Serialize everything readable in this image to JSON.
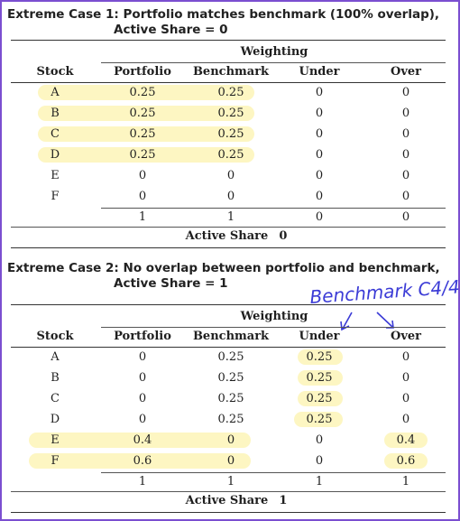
{
  "case1": {
    "title_line1": "Extreme Case 1: Portfolio matches benchmark (100% overlap),",
    "title_line2": "Active Share = 0",
    "weighting_label": "Weighting",
    "headers": [
      "Stock",
      "Portfolio",
      "Benchmark",
      "Under",
      "Over"
    ],
    "rows": [
      [
        "A",
        "0.25",
        "0.25",
        "0",
        "0"
      ],
      [
        "B",
        "0.25",
        "0.25",
        "0",
        "0"
      ],
      [
        "C",
        "0.25",
        "0.25",
        "0",
        "0"
      ],
      [
        "D",
        "0.25",
        "0.25",
        "0",
        "0"
      ],
      [
        "E",
        "0",
        "0",
        "0",
        "0"
      ],
      [
        "F",
        "0",
        "0",
        "0",
        "0"
      ]
    ],
    "totals": [
      "",
      "1",
      "1",
      "0",
      "0"
    ],
    "active_share_label": "Active Share",
    "active_share_value": "0"
  },
  "case2": {
    "title_line1": "Extreme Case 2: No overlap between portfolio and benchmark,",
    "title_line2": "Active Share = 1",
    "weighting_label": "Weighting",
    "headers": [
      "Stock",
      "Portfolio",
      "Benchmark",
      "Under",
      "Over"
    ],
    "rows": [
      [
        "A",
        "0",
        "0.25",
        "0.25",
        "0"
      ],
      [
        "B",
        "0",
        "0.25",
        "0.25",
        "0"
      ],
      [
        "C",
        "0",
        "0.25",
        "0.25",
        "0"
      ],
      [
        "D",
        "0",
        "0.25",
        "0.25",
        "0"
      ],
      [
        "E",
        "0.4",
        "0",
        "0",
        "0.4"
      ],
      [
        "F",
        "0.6",
        "0",
        "0",
        "0.6"
      ]
    ],
    "totals": [
      "",
      "1",
      "1",
      "1",
      "1"
    ],
    "active_share_label": "Active Share",
    "active_share_value": "1",
    "handwritten_note": "Benchmark C4/4"
  },
  "colors": {
    "frame": "#7b4fd0",
    "highlight": "#faec78",
    "ink": "#3b3bd6"
  }
}
